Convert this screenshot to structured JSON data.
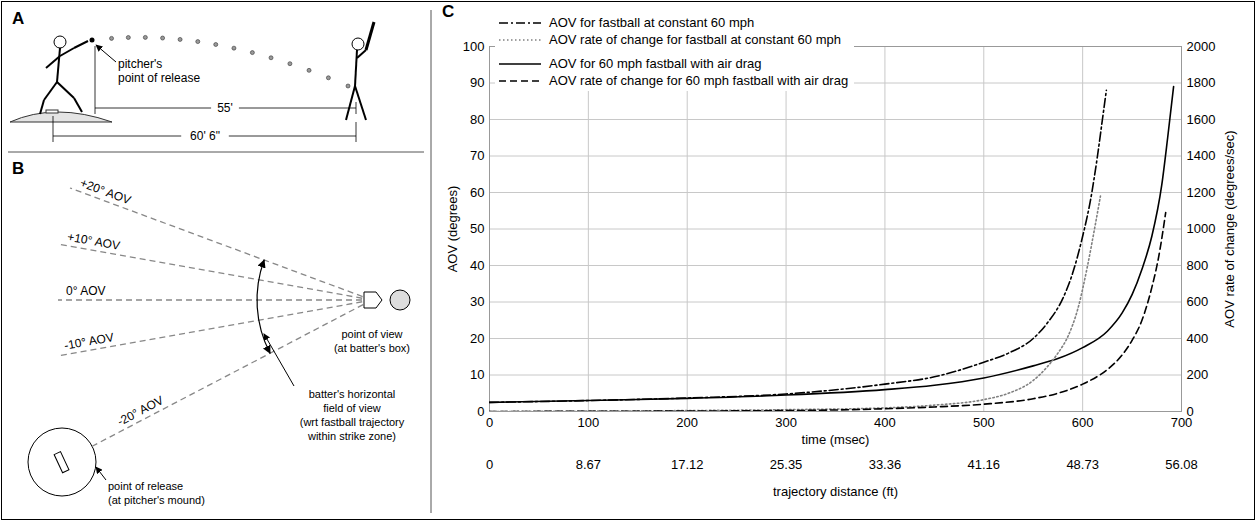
{
  "chart_data": {
    "type": "line",
    "panel_label": "C",
    "xlabel": "time (msec)",
    "x2label": "trajectory distance (ft)",
    "ylabel": "AOV (degrees)",
    "y2label": "AOV rate of change (degrees/sec)",
    "xlim": [
      0,
      700
    ],
    "xticks": [
      0,
      100,
      200,
      300,
      400,
      500,
      600,
      700
    ],
    "x2ticks": [
      {
        "value": 0,
        "label": "0"
      },
      {
        "value": 100,
        "label": "8.67"
      },
      {
        "value": 200,
        "label": "17.12"
      },
      {
        "value": 300,
        "label": "25.35"
      },
      {
        "value": 400,
        "label": "33.36"
      },
      {
        "value": 500,
        "label": "41.16"
      },
      {
        "value": 600,
        "label": "48.73"
      },
      {
        "value": 700,
        "label": "56.08"
      }
    ],
    "ylim": [
      0,
      100
    ],
    "yticks": [
      0,
      10,
      20,
      30,
      40,
      50,
      60,
      70,
      80,
      90,
      100
    ],
    "y2lim": [
      0,
      2000
    ],
    "y2ticks": [
      0,
      200,
      400,
      600,
      800,
      1000,
      1200,
      1400,
      1600,
      1800,
      2000
    ],
    "grid": true,
    "legend": "top-left",
    "series": [
      {
        "name": "AOV for fastball at constant 60 mph",
        "color": "#000000",
        "line_style": "dashdot",
        "axis": "y",
        "x": [
          0,
          100,
          200,
          300,
          400,
          450,
          500,
          525,
          550,
          565,
          580,
          590,
          600,
          608,
          615,
          620,
          624
        ],
        "values": [
          2.5,
          3.0,
          3.7,
          4.8,
          7.5,
          9.5,
          13.5,
          16,
          20,
          24.5,
          31,
          38,
          48,
          58,
          70,
          80,
          88
        ]
      },
      {
        "name": "AOV rate of change for fastball at constant 60 mph",
        "color": "#808080",
        "line_style": "dotted",
        "axis": "y2",
        "x": [
          0,
          100,
          200,
          300,
          400,
          450,
          500,
          525,
          550,
          565,
          575,
          585,
          595,
          605,
          612,
          618
        ],
        "values": [
          0,
          2,
          5,
          10,
          20,
          35,
          65,
          100,
          170,
          250,
          320,
          410,
          560,
          800,
          1000,
          1180
        ]
      },
      {
        "name": "AOV for 60 mph fastball with air drag",
        "color": "#000000",
        "line_style": "solid",
        "axis": "y",
        "x": [
          0,
          100,
          200,
          300,
          400,
          450,
          500,
          550,
          575,
          600,
          625,
          640,
          650,
          660,
          670,
          680,
          686,
          692
        ],
        "values": [
          2.5,
          3.0,
          3.6,
          4.5,
          6.0,
          7.2,
          9.2,
          12.5,
          14.5,
          17.5,
          22,
          27,
          32,
          39,
          48,
          62,
          75,
          89
        ]
      },
      {
        "name": "AOV rate of change for 60 mph fastball with air drag",
        "color": "#000000",
        "line_style": "dashed",
        "axis": "y2",
        "x": [
          0,
          300,
          400,
          450,
          500,
          550,
          575,
          600,
          625,
          640,
          650,
          660,
          670,
          677,
          684
        ],
        "values": [
          0,
          5,
          15,
          25,
          40,
          70,
          100,
          150,
          230,
          310,
          390,
          500,
          680,
          850,
          1090
        ]
      }
    ]
  },
  "diagrams": {
    "A": {
      "panel_label": "A",
      "release_annotation": [
        "pitcher's",
        "point of release"
      ],
      "dimension_full": "60' 6\"",
      "dimension_release": "55'"
    },
    "B": {
      "panel_label": "B",
      "aov_lines": [
        "+20° AOV",
        "+10° AOV",
        "0° AOV",
        "-10° AOV",
        "-20° AOV"
      ],
      "point_of_view": [
        "point of view",
        "(at batter's box)"
      ],
      "field_of_view": [
        "batter's horizontal",
        "field of view",
        "(wrt fastball trajectory",
        "within strike zone)"
      ],
      "point_of_release": [
        "point of release",
        "(at pitcher's mound)"
      ]
    }
  }
}
